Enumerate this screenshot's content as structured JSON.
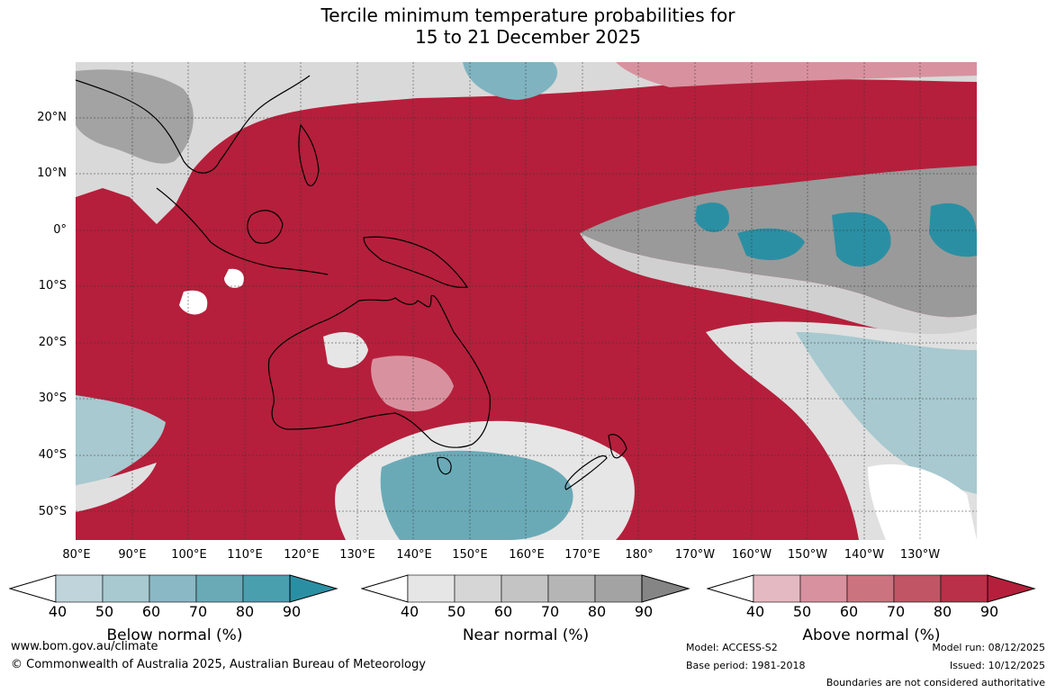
{
  "title": {
    "line1": "Tercile minimum temperature probabilities for",
    "line2": "15 to 21 December 2025"
  },
  "map": {
    "lat_labels": [
      "20°N",
      "10°N",
      "0°",
      "10°S",
      "20°S",
      "30°S",
      "40°S",
      "50°S"
    ],
    "lon_labels": [
      "80°E",
      "90°E",
      "100°E",
      "110°E",
      "120°E",
      "130°E",
      "140°E",
      "150°E",
      "160°E",
      "170°E",
      "180°",
      "170°W",
      "160°W",
      "150°W",
      "140°W",
      "130°W"
    ]
  },
  "colorbars": [
    {
      "title": "Below normal (%)",
      "ticks": [
        "40",
        "50",
        "60",
        "70",
        "80",
        "90"
      ],
      "colors": [
        "#ffffff",
        "#bfd5db",
        "#a7c9cf",
        "#8ab8c4",
        "#6aaab7",
        "#4a9fae",
        "#2b8fa3"
      ]
    },
    {
      "title": "Near normal (%)",
      "ticks": [
        "40",
        "50",
        "60",
        "70",
        "80",
        "90"
      ],
      "colors": [
        "#ffffff",
        "#e6e6e6",
        "#d6d6d6",
        "#c4c4c4",
        "#b5b5b5",
        "#a3a3a3",
        "#858585"
      ]
    },
    {
      "title": "Above normal (%)",
      "ticks": [
        "40",
        "50",
        "60",
        "70",
        "80",
        "90"
      ],
      "colors": [
        "#ffffff",
        "#e5b9c1",
        "#d8929f",
        "#cc7380",
        "#c15565",
        "#b93048",
        "#b51f3b"
      ]
    }
  ],
  "footer": {
    "website": "www.bom.gov.au/climate",
    "copyright": "© Commonwealth of Australia 2025, Australian Bureau of Meteorology",
    "model": "Model: ACCESS-S2",
    "base_period": "Base period: 1981-2018",
    "model_run": "Model run: 08/12/2025",
    "issued": "Issued: 10/12/2025",
    "disclaimer": "Boundaries are not considered authoritative"
  }
}
